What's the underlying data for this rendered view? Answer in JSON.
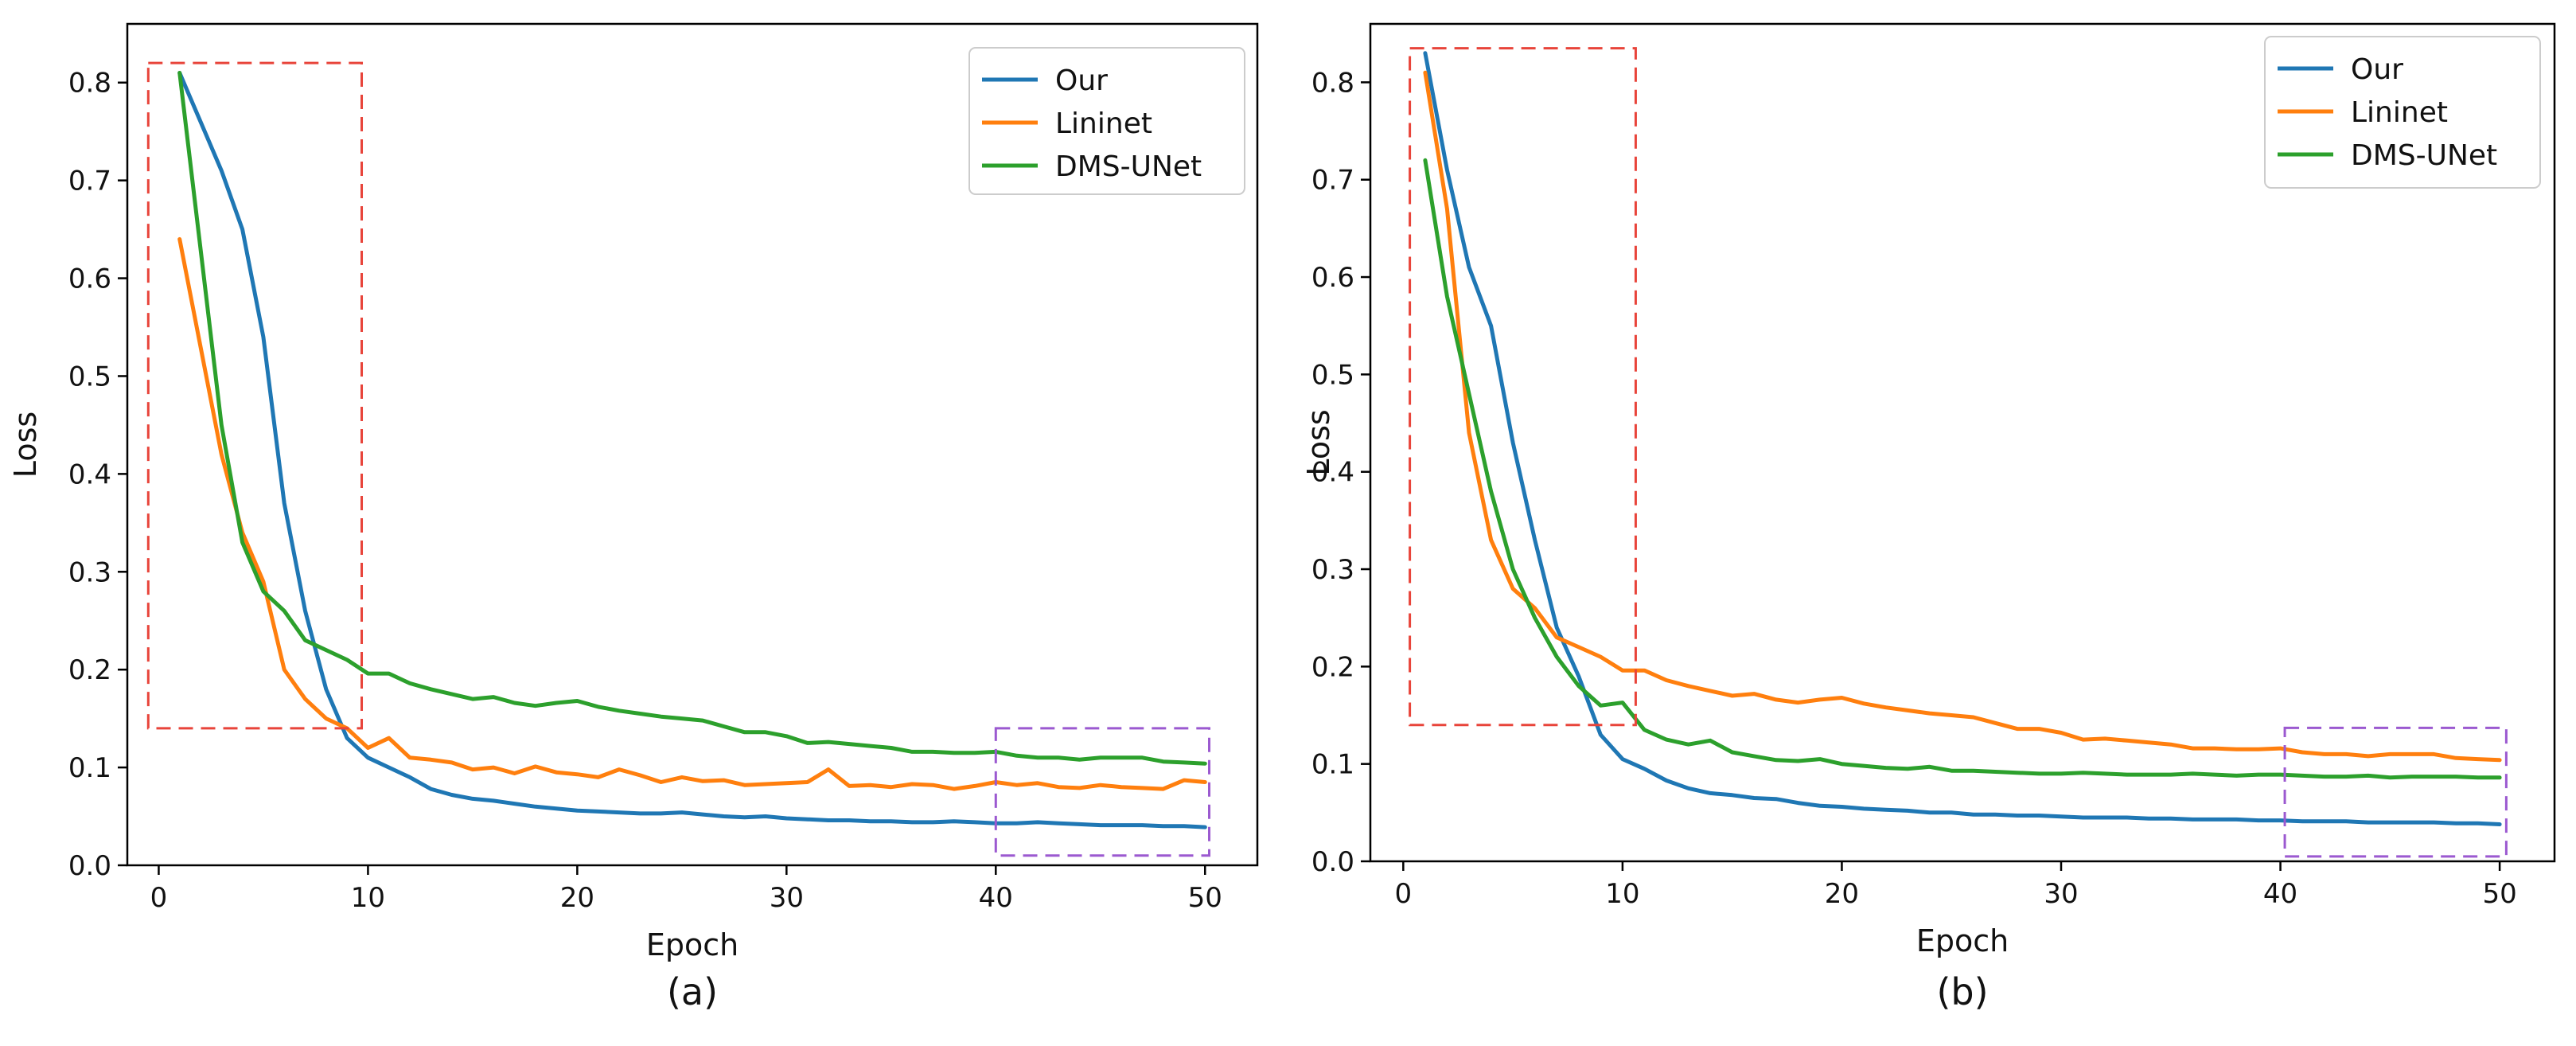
{
  "chart_data": [
    {
      "type": "line",
      "panel_label": "(a)",
      "xlabel": "Epoch",
      "ylabel": "Loss",
      "xlim": [
        -1.5,
        52.5
      ],
      "ylim": [
        0,
        0.86
      ],
      "xticks": [
        0,
        10,
        20,
        30,
        40,
        50
      ],
      "xtick_labels": [
        "0",
        "10",
        "20",
        "30",
        "40",
        "50"
      ],
      "yticks": [
        0,
        0.1,
        0.2,
        0.3,
        0.4,
        0.5,
        0.6,
        0.7,
        0.8
      ],
      "ytick_labels": [
        "0.0",
        "0.1",
        "0.2",
        "0.3",
        "0.4",
        "0.5",
        "0.6",
        "0.7",
        "0.8"
      ],
      "legend_position": "top-right",
      "grid": false,
      "annotations": [
        {
          "type": "dashed-box",
          "color": "#e8443a",
          "x": [
            -0.5,
            9.7
          ],
          "y": [
            0.14,
            0.82
          ]
        },
        {
          "type": "dashed-box",
          "color": "#9b59d0",
          "x": [
            40,
            50.2
          ],
          "y": [
            0.01,
            0.14
          ]
        }
      ],
      "series": [
        {
          "name": "Our",
          "color": "#1f77b4",
          "x": [
            1,
            2,
            3,
            4,
            5,
            6,
            7,
            8,
            9,
            10,
            11,
            12,
            13,
            14,
            15,
            16,
            17,
            18,
            19,
            20,
            21,
            22,
            23,
            24,
            25,
            26,
            27,
            28,
            29,
            30,
            31,
            32,
            33,
            34,
            35,
            36,
            37,
            38,
            39,
            40,
            41,
            42,
            43,
            44,
            45,
            46,
            47,
            48,
            49,
            50
          ],
          "values": [
            0.81,
            0.76,
            0.71,
            0.65,
            0.54,
            0.37,
            0.26,
            0.18,
            0.13,
            0.11,
            0.1,
            0.09,
            0.078,
            0.072,
            0.068,
            0.066,
            0.063,
            0.06,
            0.058,
            0.056,
            0.055,
            0.054,
            0.053,
            0.053,
            0.054,
            0.052,
            0.05,
            0.049,
            0.05,
            0.048,
            0.047,
            0.046,
            0.046,
            0.045,
            0.045,
            0.044,
            0.044,
            0.045,
            0.044,
            0.043,
            0.043,
            0.044,
            0.043,
            0.042,
            0.041,
            0.041,
            0.041,
            0.04,
            0.04,
            0.039
          ]
        },
        {
          "name": "Lininet",
          "color": "#ff7f0e",
          "x": [
            1,
            2,
            3,
            4,
            5,
            6,
            7,
            8,
            9,
            10,
            11,
            12,
            13,
            14,
            15,
            16,
            17,
            18,
            19,
            20,
            21,
            22,
            23,
            24,
            25,
            26,
            27,
            28,
            29,
            30,
            31,
            32,
            33,
            34,
            35,
            36,
            37,
            38,
            39,
            40,
            41,
            42,
            43,
            44,
            45,
            46,
            47,
            48,
            49,
            50
          ],
          "values": [
            0.64,
            0.53,
            0.42,
            0.34,
            0.29,
            0.2,
            0.17,
            0.15,
            0.14,
            0.12,
            0.13,
            0.11,
            0.108,
            0.105,
            0.098,
            0.1,
            0.094,
            0.101,
            0.095,
            0.093,
            0.09,
            0.098,
            0.092,
            0.085,
            0.09,
            0.086,
            0.087,
            0.082,
            0.083,
            0.084,
            0.085,
            0.098,
            0.081,
            0.082,
            0.08,
            0.083,
            0.082,
            0.078,
            0.081,
            0.085,
            0.082,
            0.084,
            0.08,
            0.079,
            0.082,
            0.08,
            0.079,
            0.078,
            0.087,
            0.085
          ]
        },
        {
          "name": "DMS-UNet",
          "color": "#2ca02c",
          "x": [
            1,
            2,
            3,
            4,
            5,
            6,
            7,
            8,
            9,
            10,
            11,
            12,
            13,
            14,
            15,
            16,
            17,
            18,
            19,
            20,
            21,
            22,
            23,
            24,
            25,
            26,
            27,
            28,
            29,
            30,
            31,
            32,
            33,
            34,
            35,
            36,
            37,
            38,
            39,
            40,
            41,
            42,
            43,
            44,
            45,
            46,
            47,
            48,
            49,
            50
          ],
          "values": [
            0.81,
            0.63,
            0.45,
            0.33,
            0.28,
            0.26,
            0.23,
            0.22,
            0.21,
            0.196,
            0.196,
            0.186,
            0.18,
            0.175,
            0.17,
            0.172,
            0.166,
            0.163,
            0.166,
            0.168,
            0.162,
            0.158,
            0.155,
            0.152,
            0.15,
            0.148,
            0.142,
            0.136,
            0.136,
            0.132,
            0.125,
            0.126,
            0.124,
            0.122,
            0.12,
            0.116,
            0.116,
            0.115,
            0.115,
            0.116,
            0.112,
            0.11,
            0.11,
            0.108,
            0.11,
            0.11,
            0.11,
            0.106,
            0.105,
            0.104
          ]
        }
      ]
    },
    {
      "type": "line",
      "panel_label": "(b)",
      "xlabel": "Epoch",
      "ylabel": "Loss",
      "xlim": [
        -1.5,
        52.5
      ],
      "ylim": [
        0,
        0.86
      ],
      "xticks": [
        0,
        10,
        20,
        30,
        40,
        50
      ],
      "xtick_labels": [
        "0",
        "10",
        "20",
        "30",
        "40",
        "50"
      ],
      "yticks": [
        0,
        0.1,
        0.2,
        0.3,
        0.4,
        0.5,
        0.6,
        0.7,
        0.8
      ],
      "ytick_labels": [
        "0.0",
        "0.1",
        "0.2",
        "0.3",
        "0.4",
        "0.5",
        "0.6",
        "0.7",
        "0.8"
      ],
      "legend_position": "top-right",
      "grid": false,
      "annotations": [
        {
          "type": "dashed-box",
          "color": "#e8443a",
          "x": [
            0.3,
            10.6
          ],
          "y": [
            0.14,
            0.835
          ]
        },
        {
          "type": "dashed-box",
          "color": "#9b59d0",
          "x": [
            40.2,
            50.3
          ],
          "y": [
            0.005,
            0.137
          ]
        }
      ],
      "series": [
        {
          "name": "Our",
          "color": "#1f77b4",
          "x": [
            1,
            2,
            3,
            4,
            5,
            6,
            7,
            8,
            9,
            10,
            11,
            12,
            13,
            14,
            15,
            16,
            17,
            18,
            19,
            20,
            21,
            22,
            23,
            24,
            25,
            26,
            27,
            28,
            29,
            30,
            31,
            32,
            33,
            34,
            35,
            36,
            37,
            38,
            39,
            40,
            41,
            42,
            43,
            44,
            45,
            46,
            47,
            48,
            49,
            50
          ],
          "values": [
            0.83,
            0.71,
            0.61,
            0.55,
            0.43,
            0.33,
            0.24,
            0.19,
            0.13,
            0.105,
            0.095,
            0.083,
            0.075,
            0.07,
            0.068,
            0.065,
            0.064,
            0.06,
            0.057,
            0.056,
            0.054,
            0.053,
            0.052,
            0.05,
            0.05,
            0.048,
            0.048,
            0.047,
            0.047,
            0.046,
            0.045,
            0.045,
            0.045,
            0.044,
            0.044,
            0.043,
            0.043,
            0.043,
            0.042,
            0.042,
            0.041,
            0.041,
            0.041,
            0.04,
            0.04,
            0.04,
            0.04,
            0.039,
            0.039,
            0.038
          ]
        },
        {
          "name": "Lininet",
          "color": "#ff7f0e",
          "x": [
            1,
            2,
            3,
            4,
            5,
            6,
            7,
            8,
            9,
            10,
            11,
            12,
            13,
            14,
            15,
            16,
            17,
            18,
            19,
            20,
            21,
            22,
            23,
            24,
            25,
            26,
            27,
            28,
            29,
            30,
            31,
            32,
            33,
            34,
            35,
            36,
            37,
            38,
            39,
            40,
            41,
            42,
            43,
            44,
            45,
            46,
            47,
            48,
            49,
            50
          ],
          "values": [
            0.81,
            0.67,
            0.44,
            0.33,
            0.28,
            0.26,
            0.23,
            0.22,
            0.21,
            0.196,
            0.196,
            0.186,
            0.18,
            0.175,
            0.17,
            0.172,
            0.166,
            0.163,
            0.166,
            0.168,
            0.162,
            0.158,
            0.155,
            0.152,
            0.15,
            0.148,
            0.142,
            0.136,
            0.136,
            0.132,
            0.125,
            0.126,
            0.124,
            0.122,
            0.12,
            0.116,
            0.116,
            0.115,
            0.115,
            0.116,
            0.112,
            0.11,
            0.11,
            0.108,
            0.11,
            0.11,
            0.11,
            0.106,
            0.105,
            0.104
          ]
        },
        {
          "name": "DMS-UNet",
          "color": "#2ca02c",
          "x": [
            1,
            2,
            3,
            4,
            5,
            6,
            7,
            8,
            9,
            10,
            11,
            12,
            13,
            14,
            15,
            16,
            17,
            18,
            19,
            20,
            21,
            22,
            23,
            24,
            25,
            26,
            27,
            28,
            29,
            30,
            31,
            32,
            33,
            34,
            35,
            36,
            37,
            38,
            39,
            40,
            41,
            42,
            43,
            44,
            45,
            46,
            47,
            48,
            49,
            50
          ],
          "values": [
            0.72,
            0.58,
            0.48,
            0.38,
            0.3,
            0.25,
            0.21,
            0.18,
            0.16,
            0.163,
            0.135,
            0.125,
            0.12,
            0.124,
            0.112,
            0.108,
            0.104,
            0.103,
            0.105,
            0.1,
            0.098,
            0.096,
            0.095,
            0.097,
            0.093,
            0.093,
            0.092,
            0.091,
            0.09,
            0.09,
            0.091,
            0.09,
            0.089,
            0.089,
            0.089,
            0.09,
            0.089,
            0.088,
            0.089,
            0.089,
            0.088,
            0.087,
            0.087,
            0.088,
            0.086,
            0.087,
            0.087,
            0.087,
            0.086,
            0.086
          ]
        }
      ]
    }
  ]
}
